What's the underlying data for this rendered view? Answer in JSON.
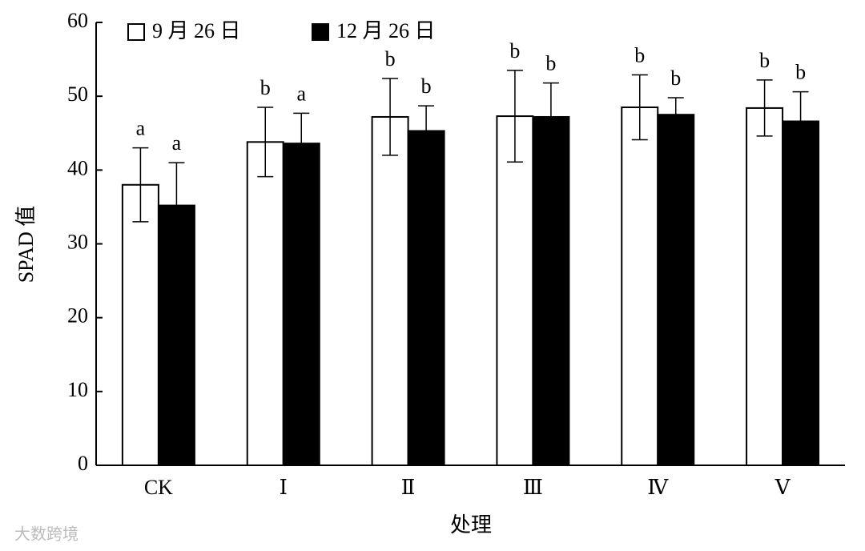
{
  "chart_data": {
    "type": "bar",
    "y_label": "SPAD 值",
    "x_label": "处理",
    "categories": [
      "CK",
      "Ⅰ",
      "Ⅱ",
      "Ⅲ",
      "Ⅳ",
      "Ⅴ"
    ],
    "series": [
      {
        "name": "9 月 26 日",
        "color": "#ffffff",
        "values": [
          38.0,
          43.8,
          47.2,
          47.3,
          48.5,
          48.4
        ],
        "errors": [
          5.0,
          4.7,
          5.2,
          6.2,
          4.4,
          3.8
        ],
        "labels": [
          "a",
          "b",
          "b",
          "b",
          "b",
          "b"
        ]
      },
      {
        "name": "12 月 26 日",
        "color": "#000000",
        "values": [
          35.2,
          43.6,
          45.3,
          47.2,
          47.5,
          46.6
        ],
        "errors": [
          5.8,
          4.1,
          3.4,
          4.6,
          2.3,
          4.0
        ],
        "labels": [
          "a",
          "a",
          "b",
          "b",
          "b",
          "b"
        ]
      }
    ],
    "ylim": [
      0,
      60
    ],
    "yticks": [
      0,
      10,
      20,
      30,
      40,
      50,
      60
    ],
    "legend": "top-left",
    "watermark": "大数跨境"
  }
}
